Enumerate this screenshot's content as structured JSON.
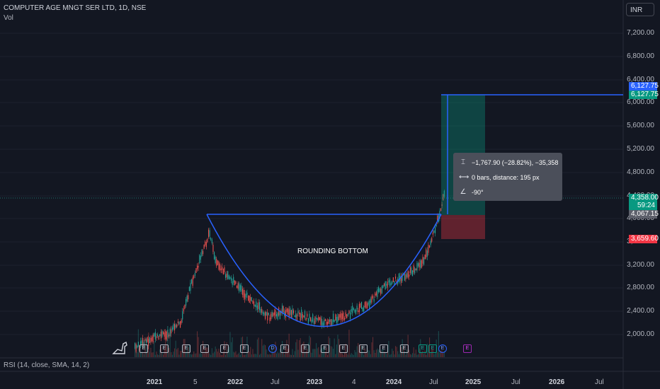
{
  "header": {
    "title": "COMPUTER AGE MNGT SER LTD, 1D, NSE",
    "vol_label": "Vol",
    "currency_button": "INR"
  },
  "y_axis": {
    "ticks": [
      "7,200.00",
      "6,800.00",
      "6,400.00",
      "6,000.00",
      "5,600.00",
      "5,200.00",
      "4,800.00",
      "4,400.00",
      "4,000.00",
      "3,600.00",
      "3,200.00",
      "2,800.00",
      "2,400.00",
      "2,000.00"
    ]
  },
  "x_axis": {
    "ticks": [
      "2021",
      "5",
      "2022",
      "Jul",
      "2023",
      "4",
      "2024",
      "Jul",
      "2025",
      "Jul",
      "2026",
      "Jul"
    ]
  },
  "price_tags": {
    "target_top": "6,127.75",
    "target_bottom": "6,127.75",
    "last_price": "4,358.00",
    "countdown": "59:24",
    "entry": "4,067.15",
    "stop": "3,659.60"
  },
  "measure_tooltip": {
    "price_change": "−1,767.90 (−28.82%), −35,358",
    "bars_distance": "0 bars, distance: 195 px",
    "angle": "-90°"
  },
  "annotation": {
    "pattern_label": "ROUNDING BOTTOM"
  },
  "rsi_label": "RSI (14, close, SMA, 14, 2)",
  "events": [
    "E",
    "E",
    "E",
    "E",
    "E",
    "E",
    "D",
    "E",
    "E",
    "E",
    "E",
    "E",
    "E",
    "E",
    "E",
    "E",
    "E"
  ],
  "colors": {
    "background": "#131722",
    "up": "#26a69a",
    "down": "#ef5350",
    "trendline": "#2962ff",
    "target": "#2962ff",
    "profit_zone": "#089981",
    "loss_zone": "#f23645"
  }
}
